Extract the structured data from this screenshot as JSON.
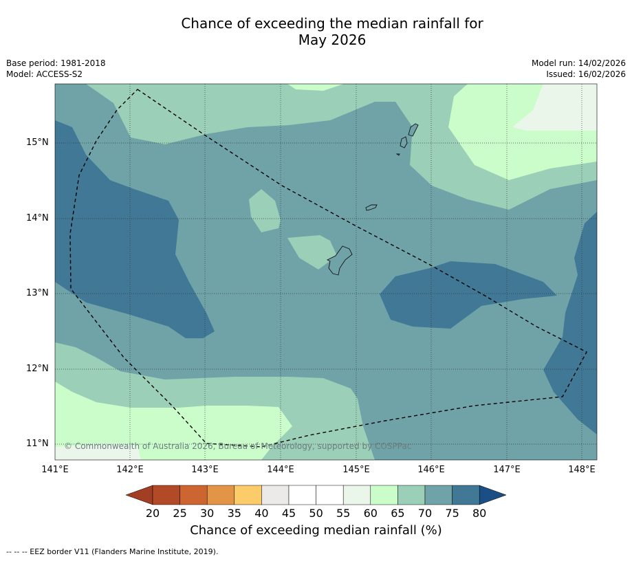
{
  "title_line1": "Chance of exceeding the median rainfall for",
  "title_line2": "May 2026",
  "base_period": "Base period: 1981-2018",
  "model": "Model: ACCESS-S2",
  "model_run": "Model run: 14/02/2026",
  "issued": "Issued: 16/02/2026",
  "copyright": "© Commonwealth of Australia 2026, Bureau of Meteorology, supported by COSPPac",
  "lat_labels": [
    "15°N",
    "14°N",
    "13°N",
    "12°N",
    "11°N"
  ],
  "lon_labels": [
    "141°E",
    "142°E",
    "143°E",
    "144°E",
    "145°E",
    "146°E",
    "147°E",
    "148°E"
  ],
  "colorbar": {
    "ticks": [
      "20",
      "25",
      "30",
      "35",
      "40",
      "45",
      "50",
      "55",
      "60",
      "65",
      "70",
      "75",
      "80"
    ],
    "colors": [
      "#b24a27",
      "#cd6531",
      "#e29547",
      "#fccc6a",
      "#ebeae6",
      "#ffffff",
      "#ffffff",
      "#eaf6ea",
      "#cbfdca",
      "#9ccfb7",
      "#70a3a7",
      "#407896"
    ],
    "under_color": "#a13e24",
    "over_color": "#1a4e84",
    "label": "Chance of exceeding median rainfall (%)"
  },
  "footnote": "--  --  -- EEZ border V11 (Flanders Marine Institute, 2019).",
  "map_colors": {
    "p70_75": "#70a3a7",
    "p75_80": "#407896",
    "p65_70": "#9ccfb7",
    "p60_65": "#cbfdca",
    "p55_60": "#eaf6ea"
  }
}
